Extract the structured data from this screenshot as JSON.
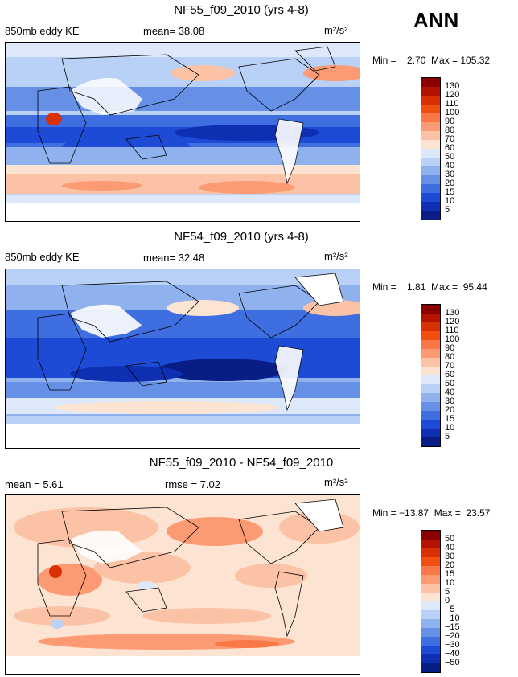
{
  "page": {
    "season_label": "ANN"
  },
  "panels": [
    {
      "title": "NF55_f09_2010 (yrs 4-8)",
      "left_label": "850mb eddy KE",
      "mid_label": "mean=  38.08",
      "units": "m²/s²",
      "minmax": "Min =    2.70  Max = 105.32",
      "colorbar": {
        "labels": [
          "130",
          "120",
          "110",
          "100",
          "90",
          "80",
          "70",
          "60",
          "50",
          "40",
          "30",
          "20",
          "15",
          "10",
          "5"
        ],
        "colors": [
          "#8b0000",
          "#b31300",
          "#d83000",
          "#f04f10",
          "#fa7848",
          "#fb9a73",
          "#fcc2a5",
          "#fde3d2",
          "#dde9fb",
          "#b9d0f7",
          "#8fb2ef",
          "#6690e6",
          "#3e6ee0",
          "#1e4bd6",
          "#0f2fb3",
          "#081d86"
        ]
      },
      "map_style": "ke_high"
    },
    {
      "title": "NF54_f09_2010 (yrs 4-8)",
      "left_label": "850mb eddy KE",
      "mid_label": "mean=  32.48",
      "units": "m²/s²",
      "minmax": "Min =    1.81  Max =  95.44",
      "colorbar": {
        "labels": [
          "130",
          "120",
          "110",
          "100",
          "90",
          "80",
          "70",
          "60",
          "50",
          "40",
          "30",
          "20",
          "15",
          "10",
          "5"
        ],
        "colors": [
          "#8b0000",
          "#b31300",
          "#d83000",
          "#f04f10",
          "#fa7848",
          "#fb9a73",
          "#fcc2a5",
          "#fde3d2",
          "#dde9fb",
          "#b9d0f7",
          "#8fb2ef",
          "#6690e6",
          "#3e6ee0",
          "#1e4bd6",
          "#0f2fb3",
          "#081d86"
        ]
      },
      "map_style": "ke_low"
    },
    {
      "title": "NF55_f09_2010 - NF54_f09_2010",
      "left_label": "mean =   5.61",
      "mid_label": "rmse =   7.02",
      "units": "m²/s²",
      "minmax": "Min = −13.87  Max =  23.57",
      "colorbar": {
        "labels": [
          "50",
          "40",
          "30",
          "20",
          "15",
          "10",
          "5",
          "0",
          "−5",
          "−10",
          "−15",
          "−20",
          "−30",
          "−40",
          "−50"
        ],
        "colors": [
          "#8b0000",
          "#b31300",
          "#d83000",
          "#f04f10",
          "#fa7848",
          "#fb9a73",
          "#fcc2a5",
          "#fde3d2",
          "#dde9fb",
          "#b9d0f7",
          "#8fb2ef",
          "#6690e6",
          "#3e6ee0",
          "#1e4bd6",
          "#0f2fb3",
          "#081d86"
        ]
      },
      "map_style": "diff"
    }
  ]
}
